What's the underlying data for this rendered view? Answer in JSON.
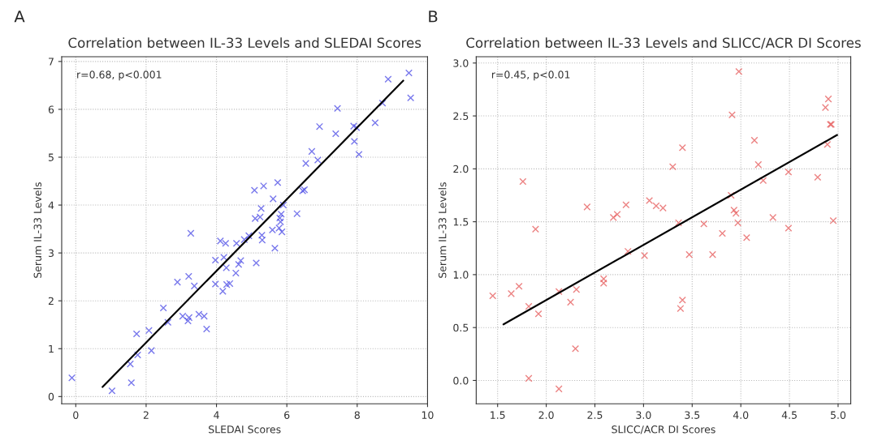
{
  "chart_data": [
    {
      "type": "scatter",
      "title": "Correlation between IL-33 Levels and SLEDAI Scores",
      "xlabel": "SLEDAI Scores",
      "ylabel": "Serum IL-33 Levels",
      "annotations": [
        "A",
        "r=0.68, p<0.001"
      ],
      "xlim": [
        -0.4,
        10
      ],
      "ylim": [
        -0.15,
        7.1
      ],
      "xticks": [
        0,
        2,
        4,
        6,
        8,
        10
      ],
      "yticks": [
        0,
        1,
        2,
        3,
        4,
        5,
        6,
        7
      ],
      "grid": true,
      "legend": false,
      "series": [
        {
          "color": "#4b4be6",
          "marker": "cross",
          "x": [
            -0.11,
            1.03,
            1.55,
            1.58,
            1.73,
            1.76,
            2.08,
            2.15,
            2.49,
            2.62,
            2.89,
            3.04,
            3.19,
            3.22,
            3.21,
            3.27,
            3.37,
            3.5,
            3.65,
            3.72,
            3.97,
            3.97,
            4.11,
            4.18,
            4.21,
            4.26,
            4.28,
            4.29,
            4.38,
            4.55,
            4.57,
            4.63,
            4.69,
            4.79,
            4.92,
            5.08,
            5.1,
            5.13,
            5.24,
            5.27,
            5.29,
            5.3,
            5.34,
            5.59,
            5.61,
            5.66,
            5.74,
            5.78,
            5.8,
            5.82,
            5.84,
            5.86,
            5.9,
            6.29,
            6.45,
            6.5,
            6.54,
            6.71,
            6.88,
            6.93,
            7.39,
            7.44,
            7.9,
            7.92,
            7.98,
            8.05,
            8.51,
            8.72,
            8.88,
            9.47,
            9.52
          ],
          "values": [
            0.39,
            0.12,
            0.68,
            0.29,
            1.31,
            0.87,
            1.38,
            0.96,
            1.85,
            1.55,
            2.39,
            1.68,
            1.58,
            1.65,
            2.51,
            3.41,
            2.31,
            1.72,
            1.68,
            1.41,
            2.85,
            2.35,
            3.25,
            2.2,
            2.91,
            3.2,
            2.69,
            2.34,
            2.36,
            2.58,
            3.2,
            2.76,
            2.84,
            3.28,
            3.36,
            4.31,
            3.72,
            2.79,
            3.75,
            3.93,
            3.37,
            3.27,
            4.4,
            3.48,
            4.13,
            3.1,
            4.47,
            3.52,
            3.73,
            3.65,
            3.81,
            3.44,
            4.0,
            3.82,
            4.3,
            4.32,
            4.87,
            5.12,
            4.94,
            5.64,
            5.49,
            6.02,
            5.65,
            5.33,
            5.62,
            5.06,
            5.72,
            6.13,
            6.63,
            6.76,
            6.24
          ]
        },
        {
          "type": "line",
          "color": "#000000",
          "line_style": "solid",
          "x": [
            0.76,
            9.31
          ],
          "values": [
            0.2,
            6.6
          ]
        }
      ]
    },
    {
      "type": "scatter",
      "title": "Correlation between IL-33 Levels and SLICC/ACR DI Scores",
      "xlabel": "SLICC/ACR DI Scores",
      "ylabel": "Serum IL-33 Levels",
      "annotations": [
        "B",
        "r=0.45, p<0.01"
      ],
      "xlim": [
        1.28,
        5.13
      ],
      "ylim": [
        -0.22,
        3.06
      ],
      "xticks": [
        1.5,
        {
          "value": 2,
          "label": "2.0"
        },
        2.5,
        {
          "value": 3,
          "label": "3.0"
        },
        3.5,
        {
          "value": 4,
          "label": "4.0"
        },
        4.5,
        {
          "value": 5,
          "label": "5.0"
        }
      ],
      "yticks": [
        {
          "value": 0,
          "label": "0.0"
        },
        0.5,
        {
          "value": 1,
          "label": "1.0"
        },
        1.5,
        {
          "value": 2,
          "label": "2.0"
        },
        2.5,
        {
          "value": 3,
          "label": "3.0"
        }
      ],
      "grid": true,
      "legend": false,
      "series": [
        {
          "color": "#e65a5a",
          "marker": "cross",
          "x": [
            1.45,
            1.64,
            1.72,
            1.76,
            1.82,
            1.82,
            1.89,
            1.92,
            2.13,
            2.13,
            2.25,
            2.3,
            2.31,
            2.42,
            2.59,
            2.59,
            2.69,
            2.73,
            2.82,
            2.84,
            3.01,
            3.06,
            3.13,
            3.2,
            3.3,
            3.36,
            3.38,
            3.4,
            3.4,
            3.47,
            3.62,
            3.71,
            3.81,
            3.9,
            3.91,
            3.93,
            3.95,
            3.97,
            3.98,
            4.06,
            4.14,
            4.18,
            4.23,
            4.33,
            4.49,
            4.49,
            4.79,
            4.87,
            4.89,
            4.9,
            4.92,
            4.93,
            4.95
          ],
          "values": [
            0.8,
            0.82,
            0.89,
            1.88,
            0.7,
            0.02,
            1.43,
            0.63,
            0.84,
            -0.08,
            0.74,
            0.3,
            0.86,
            1.64,
            0.92,
            0.96,
            1.54,
            1.57,
            1.66,
            1.22,
            1.18,
            1.7,
            1.65,
            1.63,
            2.02,
            1.49,
            0.68,
            0.76,
            2.2,
            1.19,
            1.48,
            1.19,
            1.39,
            1.75,
            2.51,
            1.61,
            1.58,
            1.49,
            2.92,
            1.35,
            2.27,
            2.04,
            1.89,
            1.54,
            1.44,
            1.97,
            1.92,
            2.58,
            2.23,
            2.66,
            2.42,
            2.42,
            1.51
          ]
        },
        {
          "type": "line",
          "color": "#000000",
          "line_style": "solid",
          "x": [
            1.56,
            4.99
          ],
          "values": [
            0.53,
            2.32
          ]
        }
      ]
    }
  ]
}
